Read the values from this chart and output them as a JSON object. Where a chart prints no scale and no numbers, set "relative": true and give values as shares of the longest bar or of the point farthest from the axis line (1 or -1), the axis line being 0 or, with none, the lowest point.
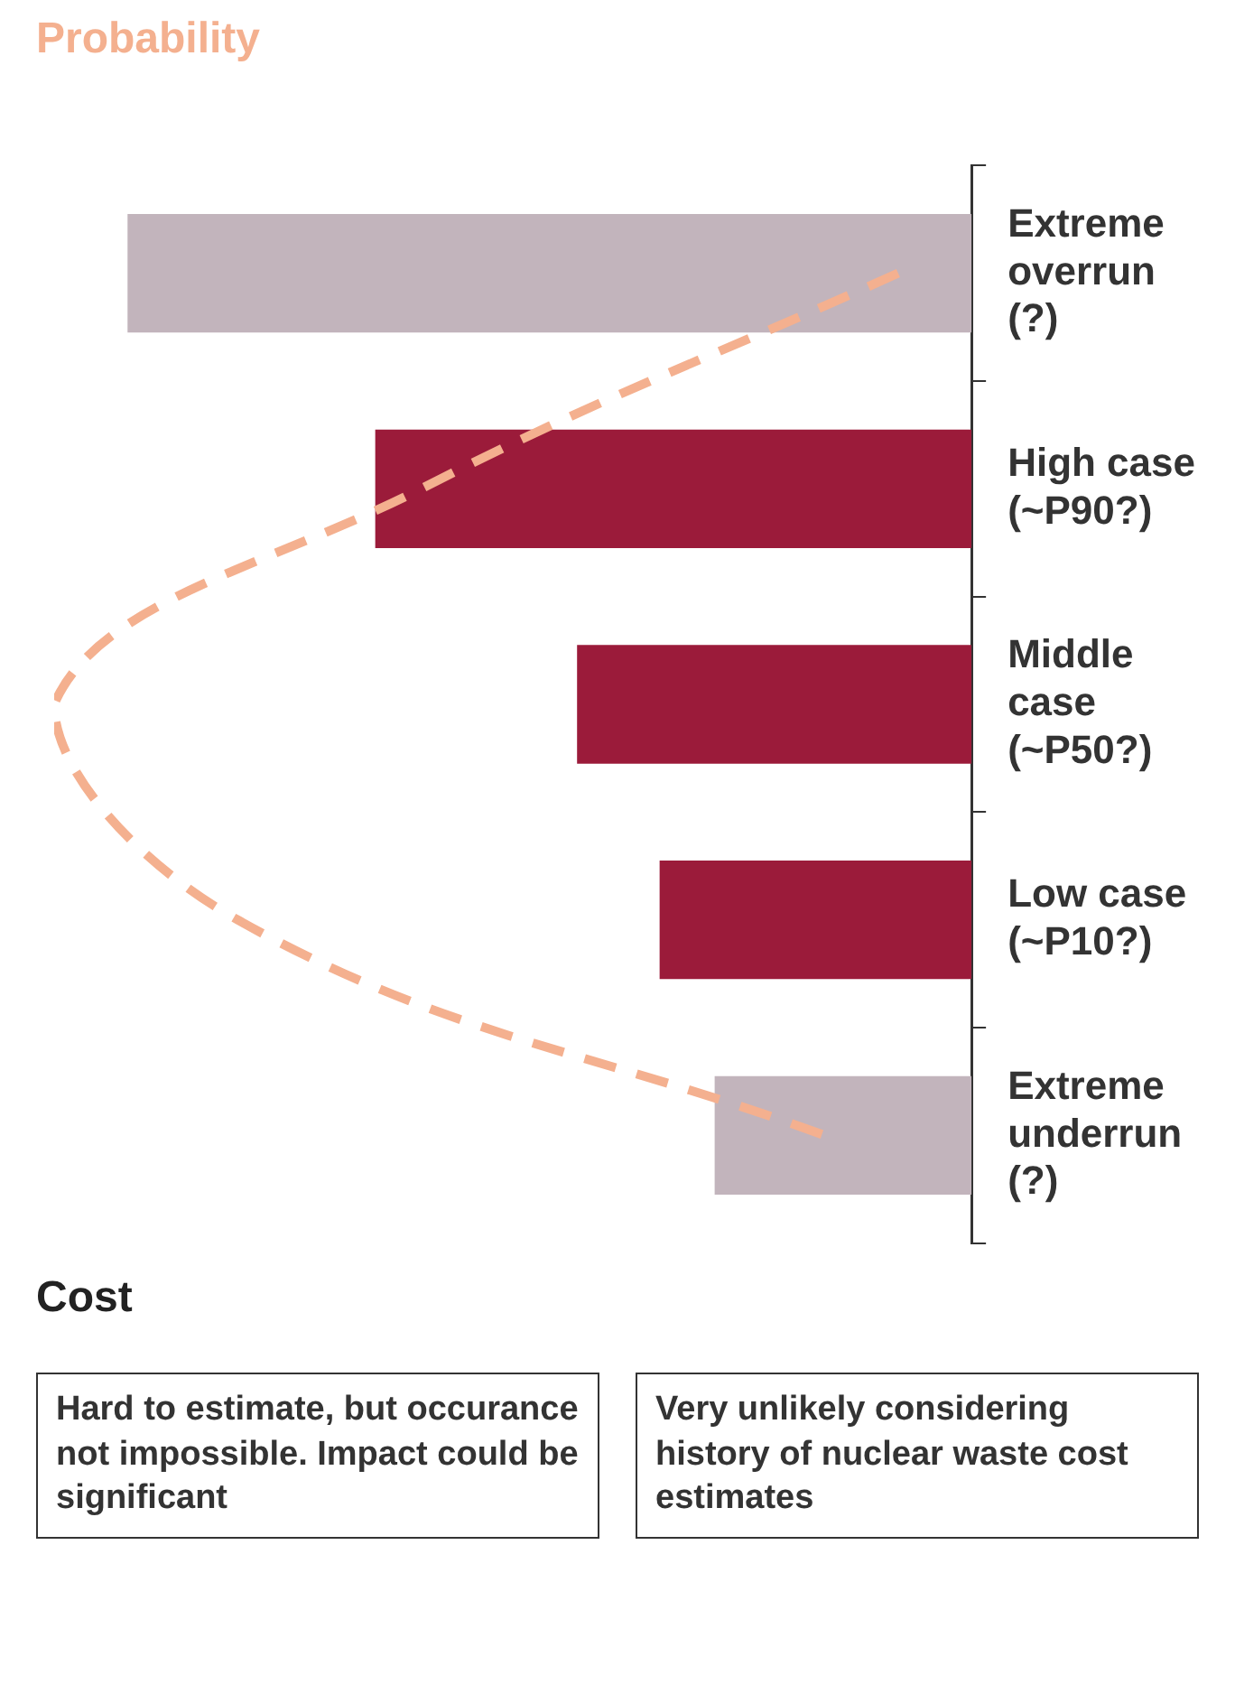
{
  "chart_data": {
    "type": "bar",
    "orientation": "horizontal",
    "relative": true,
    "legend": false,
    "xlabel": "Cost",
    "categories": [
      "Extreme overrun (?)",
      "High case (~P90?)",
      "Middle case (~P50?)",
      "Low case (~P10?)",
      "Extreme underrun (?)"
    ],
    "series": [
      {
        "colors": [
          "#c2b4bc",
          "#9b1b3a",
          "#9b1b3a",
          "#9b1b3a",
          "#c2b4bc"
        ],
        "values": [
          0.92,
          0.65,
          0.43,
          0.34,
          0.28
        ]
      },
      {
        "type": "line",
        "name": "Probability",
        "color": "#f4b08f",
        "line_style": "dashed",
        "marker": "none",
        "values": [
          0.08,
          0.6,
          1,
          0.8,
          0.16
        ]
      }
    ],
    "annotations": [
      "Hard to estimate, but occurance not impossible. Impact could be significant",
      "Very unlikely considering history of nuclear waste cost estimates"
    ]
  }
}
